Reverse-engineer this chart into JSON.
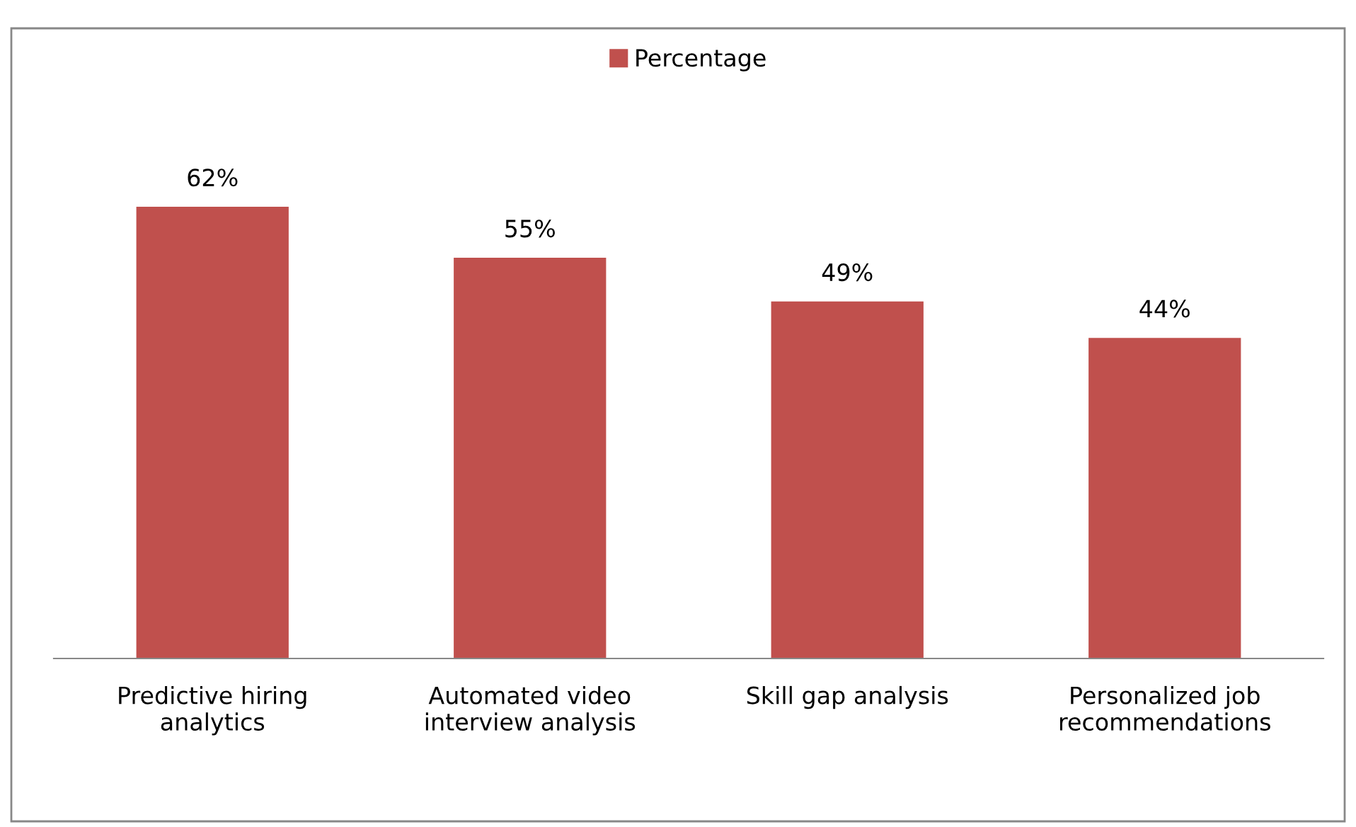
{
  "chart_data": {
    "type": "bar",
    "categories": [
      "Predictive hiring analytics",
      "Automated video interview analysis",
      "Skill gap analysis",
      "Personalized job recommendations"
    ],
    "series": [
      {
        "name": "Percentage",
        "color": "#c0504d",
        "values": [
          62,
          55,
          49,
          44
        ],
        "value_labels": [
          "62%",
          "55%",
          "49%",
          "44%"
        ]
      }
    ],
    "legend": "top",
    "grid": false
  }
}
